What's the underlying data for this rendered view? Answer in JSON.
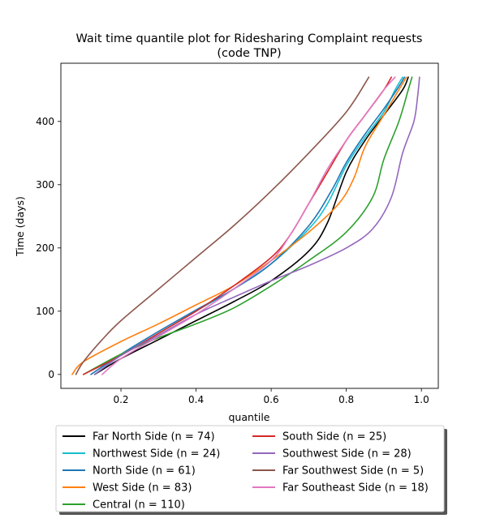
{
  "chart_data": {
    "type": "line",
    "title_line1": "Wait time quantile plot for Ridesharing Complaint  requests",
    "title_line2": "(code TNP)",
    "xlabel": "quantile",
    "ylabel": "Time (days)",
    "xlim": [
      0.04,
      1.045
    ],
    "ylim": [
      -22,
      492
    ],
    "x_ticks": [
      0.2,
      0.4,
      0.6,
      0.8,
      1.0
    ],
    "x_tick_labels": [
      "0.2",
      "0.4",
      "0.6",
      "0.8",
      "1.0"
    ],
    "y_ticks": [
      0,
      100,
      200,
      300,
      400
    ],
    "y_tick_labels": [
      "0",
      "100",
      "200",
      "300",
      "400"
    ],
    "grid": false,
    "legend_position": "bottom (below axes), two columns",
    "series": [
      {
        "name": "Far North Side (n = 74)",
        "color": "#000000",
        "points": [
          [
            0.13,
            0
          ],
          [
            0.2,
            25
          ],
          [
            0.3,
            55
          ],
          [
            0.4,
            85
          ],
          [
            0.5,
            115
          ],
          [
            0.6,
            148
          ],
          [
            0.7,
            195
          ],
          [
            0.75,
            240
          ],
          [
            0.8,
            320
          ],
          [
            0.85,
            370
          ],
          [
            0.9,
            410
          ],
          [
            0.95,
            450
          ],
          [
            0.965,
            470
          ]
        ]
      },
      {
        "name": "Northwest Side (n = 24)",
        "color": "#17becf",
        "points": [
          [
            0.13,
            0
          ],
          [
            0.2,
            30
          ],
          [
            0.3,
            65
          ],
          [
            0.4,
            100
          ],
          [
            0.5,
            135
          ],
          [
            0.6,
            175
          ],
          [
            0.7,
            230
          ],
          [
            0.75,
            270
          ],
          [
            0.8,
            330
          ],
          [
            0.85,
            375
          ],
          [
            0.9,
            415
          ],
          [
            0.93,
            450
          ],
          [
            0.95,
            470
          ]
        ]
      },
      {
        "name": "North Side (n = 61)",
        "color": "#1f77b4",
        "points": [
          [
            0.12,
            0
          ],
          [
            0.2,
            32
          ],
          [
            0.3,
            68
          ],
          [
            0.4,
            102
          ],
          [
            0.5,
            135
          ],
          [
            0.6,
            175
          ],
          [
            0.7,
            235
          ],
          [
            0.76,
            290
          ],
          [
            0.8,
            335
          ],
          [
            0.85,
            380
          ],
          [
            0.9,
            420
          ],
          [
            0.94,
            455
          ],
          [
            0.955,
            470
          ]
        ]
      },
      {
        "name": "West Side (n = 83)",
        "color": "#ff7f0e",
        "points": [
          [
            0.07,
            0
          ],
          [
            0.1,
            20
          ],
          [
            0.2,
            52
          ],
          [
            0.3,
            80
          ],
          [
            0.4,
            110
          ],
          [
            0.5,
            140
          ],
          [
            0.6,
            180
          ],
          [
            0.7,
            225
          ],
          [
            0.78,
            270
          ],
          [
            0.82,
            310
          ],
          [
            0.85,
            360
          ],
          [
            0.9,
            410
          ],
          [
            0.94,
            450
          ],
          [
            0.96,
            470
          ]
        ]
      },
      {
        "name": "Central (n = 110)",
        "color": "#2ca02c",
        "points": [
          [
            0.1,
            0
          ],
          [
            0.2,
            32
          ],
          [
            0.3,
            58
          ],
          [
            0.4,
            80
          ],
          [
            0.5,
            105
          ],
          [
            0.6,
            140
          ],
          [
            0.7,
            180
          ],
          [
            0.8,
            225
          ],
          [
            0.87,
            280
          ],
          [
            0.9,
            340
          ],
          [
            0.94,
            400
          ],
          [
            0.965,
            450
          ],
          [
            0.975,
            470
          ]
        ]
      },
      {
        "name": "South Side (n = 25)",
        "color": "#d62728",
        "points": [
          [
            0.1,
            0
          ],
          [
            0.2,
            30
          ],
          [
            0.3,
            65
          ],
          [
            0.4,
            100
          ],
          [
            0.5,
            140
          ],
          [
            0.6,
            185
          ],
          [
            0.65,
            220
          ],
          [
            0.7,
            270
          ],
          [
            0.75,
            320
          ],
          [
            0.8,
            370
          ],
          [
            0.85,
            410
          ],
          [
            0.9,
            450
          ],
          [
            0.92,
            470
          ]
        ]
      },
      {
        "name": "Southwest Side (n = 28)",
        "color": "#9467bd",
        "points": [
          [
            0.13,
            0
          ],
          [
            0.2,
            30
          ],
          [
            0.3,
            62
          ],
          [
            0.4,
            95
          ],
          [
            0.5,
            122
          ],
          [
            0.6,
            148
          ],
          [
            0.7,
            172
          ],
          [
            0.8,
            200
          ],
          [
            0.87,
            230
          ],
          [
            0.92,
            280
          ],
          [
            0.95,
            350
          ],
          [
            0.98,
            400
          ],
          [
            0.99,
            440
          ],
          [
            0.995,
            470
          ]
        ]
      },
      {
        "name": "Far Southwest Side (n = 5)",
        "color": "#8c564b",
        "points": [
          [
            0.08,
            0
          ],
          [
            0.1,
            20
          ],
          [
            0.15,
            55
          ],
          [
            0.2,
            85
          ],
          [
            0.3,
            135
          ],
          [
            0.4,
            185
          ],
          [
            0.5,
            235
          ],
          [
            0.6,
            290
          ],
          [
            0.7,
            350
          ],
          [
            0.8,
            415
          ],
          [
            0.86,
            470
          ]
        ]
      },
      {
        "name": "Far Southeast Side (n = 18)",
        "color": "#e377c2",
        "points": [
          [
            0.15,
            0
          ],
          [
            0.2,
            25
          ],
          [
            0.3,
            60
          ],
          [
            0.4,
            95
          ],
          [
            0.5,
            135
          ],
          [
            0.6,
            180
          ],
          [
            0.65,
            220
          ],
          [
            0.7,
            270
          ],
          [
            0.75,
            325
          ],
          [
            0.8,
            370
          ],
          [
            0.85,
            410
          ],
          [
            0.9,
            450
          ],
          [
            0.93,
            470
          ]
        ]
      }
    ]
  }
}
